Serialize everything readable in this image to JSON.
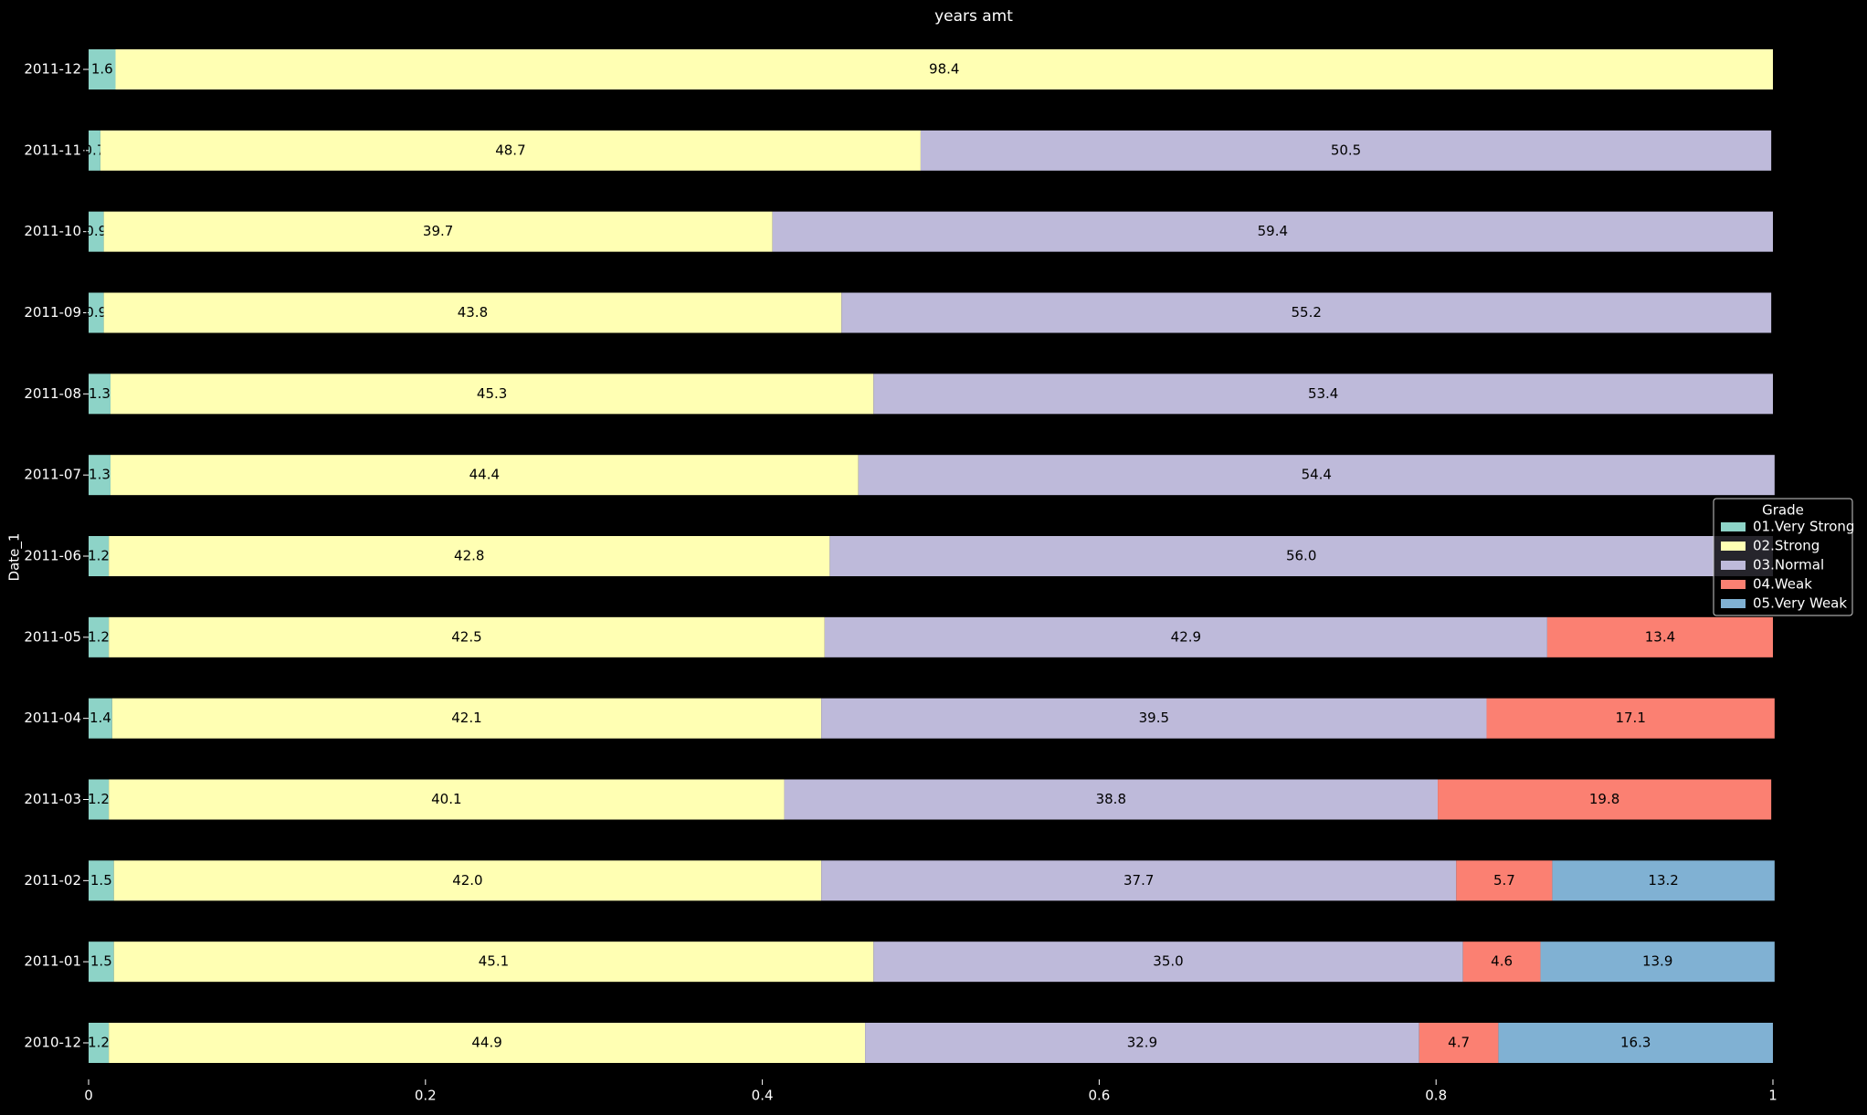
{
  "chart_data": {
    "type": "barh_stacked",
    "title": "years amt",
    "ylabel": "Date_1",
    "legend_title": "Grade",
    "legend_position": "right",
    "categories": [
      "2011-12",
      "2011-11",
      "2011-10",
      "2011-09",
      "2011-08",
      "2011-07",
      "2011-06",
      "2011-05",
      "2011-04",
      "2011-03",
      "2011-02",
      "2011-01",
      "2010-12"
    ],
    "series": [
      {
        "name": "01.Very Strong",
        "color": "#8dd3c7",
        "values": [
          0.016,
          0.007,
          0.009,
          0.009,
          0.013,
          0.013,
          0.012,
          0.012,
          0.014,
          0.012,
          0.015,
          0.015,
          0.012
        ],
        "value_labels": [
          "1.6",
          "0.7",
          "0.9",
          "0.9",
          "1.3",
          "1.3",
          "1.2",
          "1.2",
          "1.4",
          "1.2",
          "1.5",
          "1.5",
          "1.2"
        ]
      },
      {
        "name": "02.Strong",
        "color": "#ffffb3",
        "values": [
          0.984,
          0.487,
          0.397,
          0.438,
          0.453,
          0.444,
          0.428,
          0.425,
          0.421,
          0.401,
          0.42,
          0.451,
          0.449
        ],
        "value_labels": [
          "98.4",
          "48.7",
          "39.7",
          "43.8",
          "45.3",
          "44.4",
          "42.8",
          "42.5",
          "42.1",
          "40.1",
          "42.0",
          "45.1",
          "44.9"
        ]
      },
      {
        "name": "03.Normal",
        "color": "#bebada",
        "values": [
          null,
          0.505,
          0.594,
          0.552,
          0.534,
          0.544,
          0.56,
          0.429,
          0.395,
          0.388,
          0.377,
          0.35,
          0.329
        ],
        "value_labels": [
          null,
          "50.5",
          "59.4",
          "55.2",
          "53.4",
          "54.4",
          "56.0",
          "42.9",
          "39.5",
          "38.8",
          "37.7",
          "35.0",
          "32.9"
        ]
      },
      {
        "name": "04.Weak",
        "color": "#fb8072",
        "values": [
          null,
          null,
          null,
          null,
          null,
          null,
          null,
          0.134,
          0.171,
          0.198,
          0.057,
          0.046,
          0.047
        ],
        "value_labels": [
          null,
          null,
          null,
          null,
          null,
          null,
          null,
          "13.4",
          "17.1",
          "19.8",
          "5.7",
          "4.6",
          "4.7"
        ]
      },
      {
        "name": "05.Very Weak",
        "color": "#80b1d3",
        "values": [
          null,
          null,
          null,
          null,
          null,
          null,
          null,
          null,
          null,
          null,
          0.132,
          0.139,
          0.163
        ],
        "value_labels": [
          null,
          null,
          null,
          null,
          null,
          null,
          null,
          null,
          null,
          null,
          "13.2",
          "13.9",
          "16.3"
        ]
      }
    ],
    "xlim": [
      0,
      1
    ],
    "xticks": [
      0.0,
      0.2,
      0.4,
      0.6,
      0.8,
      1.0
    ]
  }
}
